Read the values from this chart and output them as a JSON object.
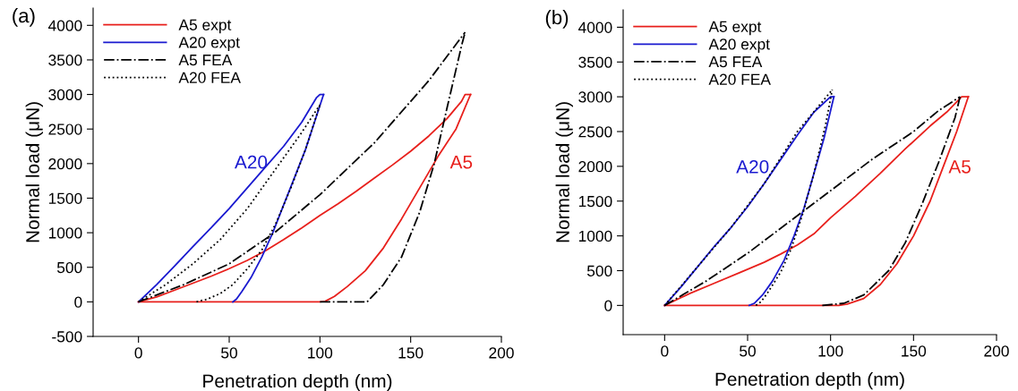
{
  "chart_data": [
    {
      "type": "line",
      "title": "(a)",
      "xlabel": "Penetration depth (nm)",
      "ylabel": "Normal load (μN)",
      "xlim": [
        -25,
        200
      ],
      "ylim": [
        -500,
        4250
      ],
      "xticks": [
        0,
        50,
        100,
        150,
        200
      ],
      "yticks": [
        -500,
        0,
        500,
        1000,
        1500,
        2000,
        2500,
        3000,
        3500,
        4000
      ],
      "grid": false,
      "legend": "top left",
      "marker": "none",
      "annotations": [
        "A20",
        "A5"
      ],
      "series": [
        {
          "name": "A5 expt",
          "color": "#e8201c",
          "line_style": "solid",
          "x": [
            0,
            10,
            20,
            30,
            40,
            50,
            60,
            70,
            80,
            90,
            100,
            110,
            120,
            130,
            140,
            150,
            160,
            170,
            178,
            180,
            183
          ],
          "values": [
            0,
            70,
            170,
            270,
            370,
            480,
            600,
            740,
            900,
            1070,
            1250,
            1420,
            1600,
            1790,
            1980,
            2180,
            2400,
            2650,
            2900,
            3000,
            3000
          ]
        },
        {
          "name": "A20 expt",
          "color": "#1a1ad0",
          "line_style": "solid",
          "x": [
            0,
            10,
            20,
            30,
            40,
            50,
            60,
            70,
            80,
            90,
            98,
            100,
            102
          ],
          "values": [
            0,
            250,
            520,
            800,
            1070,
            1350,
            1650,
            1950,
            2250,
            2600,
            2950,
            3000,
            3000
          ]
        },
        {
          "name": "A5 FEA",
          "color": "#000000",
          "line_style": "dashdot",
          "x": [
            0,
            25,
            50,
            75,
            100,
            130,
            160,
            180
          ],
          "values": [
            0,
            250,
            550,
            1000,
            1550,
            2300,
            3200,
            3900
          ]
        },
        {
          "name": "A20 FEA",
          "color": "#000000",
          "line_style": "dotted",
          "x": [
            0,
            15,
            30,
            45,
            60,
            75,
            90,
            100
          ],
          "values": [
            0,
            250,
            550,
            900,
            1350,
            1900,
            2450,
            2850
          ]
        },
        {
          "color": "#e8201c",
          "line_style": "solid",
          "x": [
            0,
            100,
            103,
            108,
            115,
            125,
            135,
            145,
            155,
            165,
            175,
            183
          ],
          "values": [
            0,
            0,
            10,
            80,
            220,
            450,
            780,
            1200,
            1650,
            2100,
            2500,
            3000
          ]
        },
        {
          "color": "#1a1ad0",
          "line_style": "solid",
          "x": [
            52,
            54,
            57,
            62,
            68,
            74,
            80,
            86,
            92,
            97,
            102
          ],
          "values": [
            0,
            40,
            150,
            350,
            650,
            1000,
            1400,
            1800,
            2200,
            2600,
            3000
          ]
        },
        {
          "color": "#000000",
          "line_style": "dashdot",
          "x": [
            100,
            126,
            135,
            145,
            155,
            163,
            170,
            178,
            180
          ],
          "values": [
            0,
            0,
            250,
            650,
            1300,
            2000,
            2800,
            3700,
            3900
          ]
        },
        {
          "color": "#000000",
          "line_style": "dotted",
          "x": [
            32,
            38,
            45,
            52,
            60,
            68,
            76,
            84,
            92,
            100
          ],
          "values": [
            0,
            40,
            120,
            250,
            480,
            750,
            1150,
            1650,
            2200,
            2850
          ]
        }
      ]
    },
    {
      "type": "line",
      "title": "(b)",
      "xlabel": "Penetration depth (nm)",
      "ylabel": "Normal load (μN)",
      "xlim": [
        -25,
        200
      ],
      "ylim": [
        -420,
        4250
      ],
      "xticks": [
        0,
        50,
        100,
        150,
        200
      ],
      "yticks": [
        0,
        500,
        1000,
        1500,
        2000,
        2500,
        3000,
        3500,
        4000
      ],
      "grid": false,
      "legend": "top left",
      "marker": "none",
      "annotations": [
        "A20",
        "A5"
      ],
      "series": [
        {
          "name": "A5 expt",
          "color": "#e8201c",
          "line_style": "solid",
          "x": [
            0,
            15,
            30,
            45,
            60,
            70,
            80,
            90,
            100,
            115,
            130,
            145,
            160,
            170,
            179,
            183
          ],
          "values": [
            0,
            170,
            320,
            470,
            620,
            740,
            870,
            1030,
            1260,
            1570,
            1900,
            2250,
            2580,
            2780,
            3000,
            3000
          ]
        },
        {
          "name": "A20 expt",
          "color": "#1a1ad0",
          "line_style": "solid",
          "x": [
            0,
            10,
            20,
            30,
            40,
            50,
            60,
            70,
            80,
            90,
            100,
            102
          ],
          "values": [
            0,
            270,
            560,
            850,
            1120,
            1420,
            1750,
            2100,
            2450,
            2780,
            3000,
            3000
          ]
        },
        {
          "name": "A5 FEA",
          "color": "#000000",
          "line_style": "dashdot",
          "x": [
            0,
            25,
            50,
            75,
            100,
            125,
            150,
            165,
            178
          ],
          "values": [
            0,
            350,
            750,
            1200,
            1650,
            2100,
            2500,
            2800,
            3000
          ]
        },
        {
          "name": "A20 FEA",
          "color": "#000000",
          "line_style": "dotted",
          "x": [
            0,
            20,
            40,
            60,
            80,
            101
          ],
          "values": [
            0,
            560,
            1120,
            1750,
            2500,
            3100
          ]
        },
        {
          "color": "#e8201c",
          "line_style": "solid",
          "x": [
            0,
            100,
            105,
            110,
            120,
            130,
            140,
            150,
            160,
            168,
            176,
            183
          ],
          "values": [
            0,
            0,
            0,
            20,
            100,
            300,
            600,
            1000,
            1500,
            2000,
            2500,
            3000
          ]
        },
        {
          "color": "#1a1ad0",
          "line_style": "solid",
          "x": [
            51,
            54,
            59,
            65,
            72,
            78,
            84,
            90,
            96,
            102
          ],
          "values": [
            0,
            30,
            150,
            350,
            650,
            1000,
            1400,
            1900,
            2400,
            3000
          ]
        },
        {
          "color": "#000000",
          "line_style": "dashdot",
          "x": [
            95,
            108,
            120,
            135,
            145,
            155,
            165,
            175,
            178
          ],
          "values": [
            0,
            30,
            150,
            500,
            900,
            1450,
            2050,
            2700,
            3000
          ]
        },
        {
          "color": "#000000",
          "line_style": "dotted",
          "x": [
            55,
            58,
            62,
            70,
            76,
            83,
            90,
            97,
            101
          ],
          "values": [
            0,
            50,
            180,
            480,
            800,
            1300,
            1900,
            2600,
            3100
          ]
        }
      ]
    }
  ]
}
